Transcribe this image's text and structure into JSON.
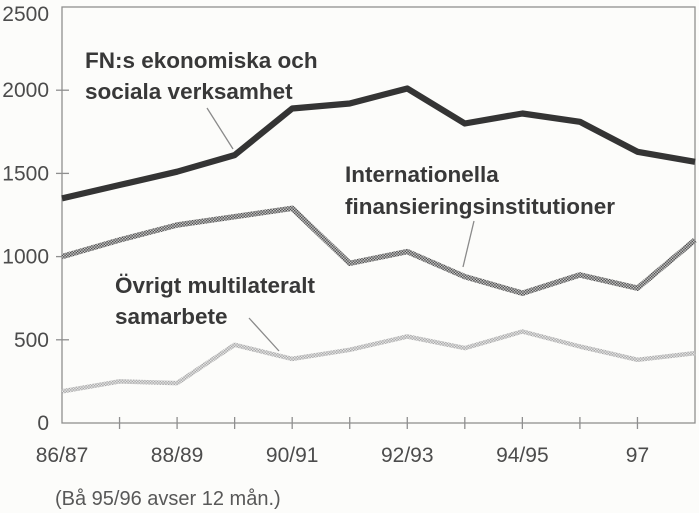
{
  "chart_data": {
    "type": "line",
    "title": "",
    "xlabel": "",
    "ylabel": "",
    "ylim": [
      0,
      2500
    ],
    "y_ticks": [
      0,
      500,
      1000,
      1500,
      2000,
      2500
    ],
    "y_tick_labels": [
      "0",
      "500",
      "1000",
      "1500",
      "2000",
      "2500"
    ],
    "x_point_count": 12,
    "x_tick_labels": [
      {
        "point": 0,
        "label": "86/87"
      },
      {
        "point": 2,
        "label": "88/89"
      },
      {
        "point": 4,
        "label": "90/91"
      },
      {
        "point": 6,
        "label": "92/93"
      },
      {
        "point": 8,
        "label": "94/95"
      },
      {
        "point": 10,
        "label": "97"
      }
    ],
    "grid": "off",
    "legend_position": "inline-annotations",
    "series": [
      {
        "name": "FN:s ekonomiska och sociala verksamhet",
        "line_style": "thick solid black",
        "values": [
          1350,
          1430,
          1510,
          1610,
          1890,
          1920,
          2010,
          1800,
          1860,
          1810,
          1630,
          1570
        ]
      },
      {
        "name": "Internationella finansieringsinstitutioner",
        "line_style": "checkered medium gray",
        "values": [
          1000,
          1100,
          1190,
          1240,
          1290,
          960,
          1030,
          880,
          780,
          890,
          810,
          1100
        ]
      },
      {
        "name": "Övrigt multilateralt samarbete",
        "line_style": "checkered light gray",
        "values": [
          190,
          250,
          240,
          470,
          385,
          440,
          520,
          450,
          550,
          460,
          380,
          420
        ]
      }
    ],
    "annotations": [
      {
        "lines": [
          "FN:s ekonomiska och",
          "sociala verksamhet"
        ]
      },
      {
        "lines": [
          "Internationella",
          "finansieringsinstitutioner"
        ]
      },
      {
        "lines": [
          "Övrigt multilateralt",
          "samarbete"
        ]
      }
    ],
    "caption": "(Bå 95/96 avser 12 mån.)",
    "colors": {
      "series_black": "#343434",
      "series_dark_gray_dot": "#4f4f4f",
      "series_dark_gray_alt": "#c9c9c9",
      "series_light_gray_dot": "#a8a8a8",
      "series_light_gray_alt": "#e6e6e6",
      "axis": "#8f8f8f",
      "text": "#4a4a4a"
    }
  }
}
